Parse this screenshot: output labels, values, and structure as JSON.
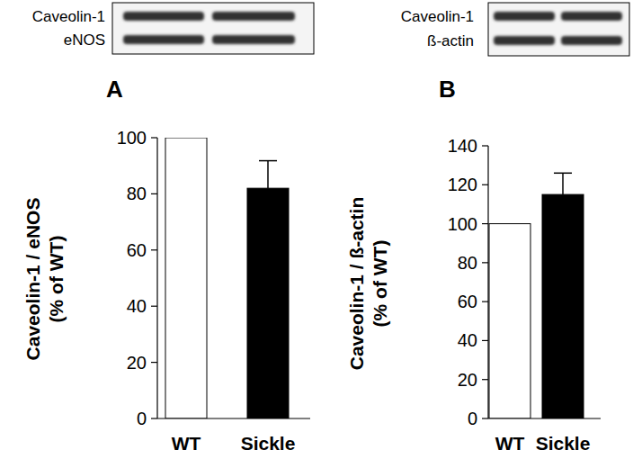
{
  "chart_data": [
    {
      "type": "bar",
      "title": "A",
      "blot_labels": [
        "Caveolin-1",
        "eNOS"
      ],
      "y_label": [
        "Caveolin-1 / eNOS",
        "(% of WT)"
      ],
      "categories": [
        "WT",
        "Sickle"
      ],
      "values": [
        100,
        82
      ],
      "errors": [
        null,
        9.8
      ],
      "colors": [
        "#ffffff",
        "#000000"
      ],
      "ylim": [
        0,
        100
      ],
      "yticks": [
        0,
        20,
        40,
        60,
        80,
        100
      ],
      "grid": false
    },
    {
      "type": "bar",
      "title": "B",
      "blot_labels": [
        "Caveolin-1",
        "ß-actin"
      ],
      "y_label": [
        "Caveolin-1 / ß-actin",
        "(% of WT)"
      ],
      "categories": [
        "WT",
        "Sickle"
      ],
      "values": [
        100,
        115
      ],
      "errors": [
        null,
        11
      ],
      "colors": [
        "#ffffff",
        "#000000"
      ],
      "ylim": [
        0,
        140
      ],
      "yticks": [
        0,
        20,
        40,
        60,
        80,
        100,
        120,
        140
      ],
      "grid": false
    }
  ]
}
